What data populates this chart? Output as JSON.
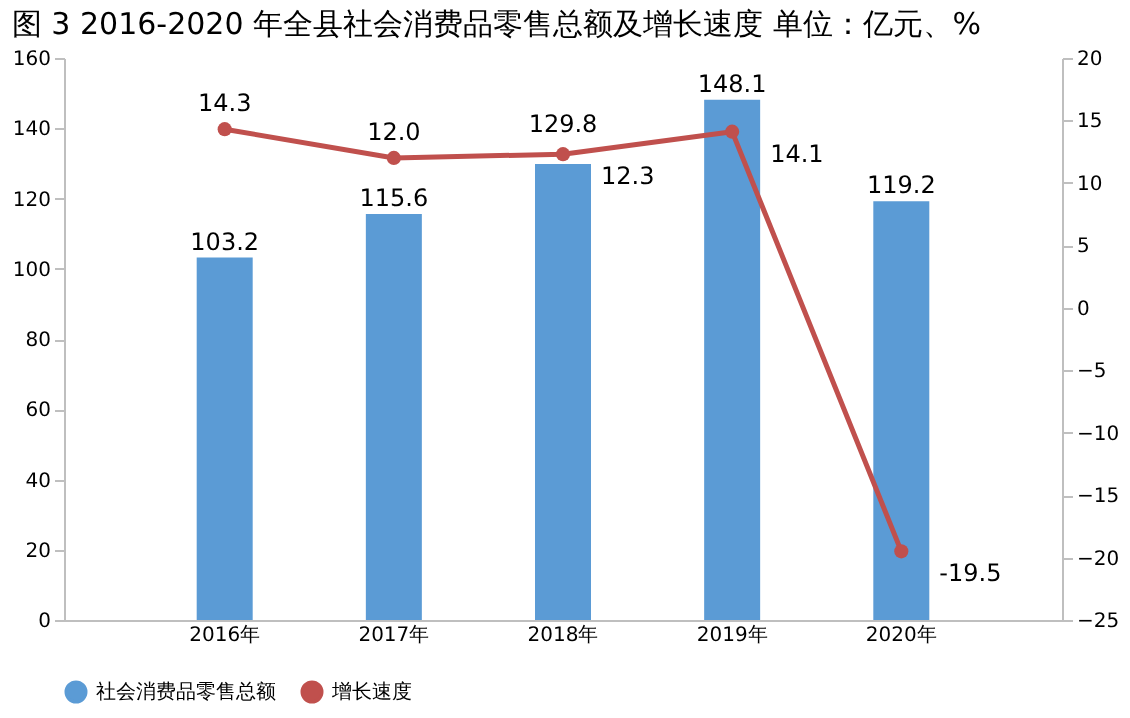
{
  "chart_data": {
    "type": "bar",
    "title": "图 3 2016-2020 年全县社会消费品零售总额及增长速度 单位：亿元、%",
    "categories": [
      "2016年",
      "2017年",
      "2018年",
      "2019年",
      "2020年"
    ],
    "series": [
      {
        "name": "社会消费品零售总额",
        "color": "#5b9bd5",
        "values": [
          103.2,
          115.6,
          129.8,
          148.1,
          119.2
        ],
        "value_labels": [
          "103.2",
          "115.6",
          "129.8",
          "148.1",
          "119.2"
        ]
      },
      {
        "name": "增长速度",
        "type": "line",
        "axis": "y2",
        "color": "#c0504d",
        "marker": "circle",
        "values": [
          14.3,
          12.0,
          12.3,
          14.1,
          -19.5
        ],
        "value_labels": [
          "14.3",
          "12.0",
          "12.3",
          "14.1",
          "-19.5"
        ]
      }
    ],
    "ylim": [
      0,
      160
    ],
    "yticks": [
      0,
      20,
      40,
      60,
      80,
      100,
      120,
      140,
      160
    ],
    "y2lim": [
      -25,
      20
    ],
    "y2ticks": [
      -25,
      -20,
      -15,
      -10,
      -5,
      0,
      5,
      10,
      15,
      20
    ],
    "legend": "bottom",
    "grid": false
  }
}
